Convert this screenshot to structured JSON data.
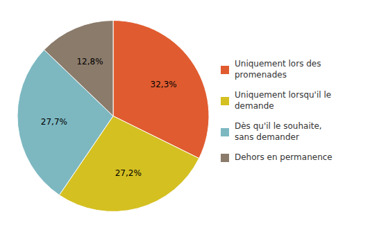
{
  "chart_data": {
    "type": "pie",
    "categories": [
      "Uniquement lors des\npromenades",
      "Uniquement lorsqu'il le\ndemande",
      "Dès qu'il le souhaite,\nsans demander",
      "Dehors en permanence"
    ],
    "values": [
      32.3,
      27.2,
      27.7,
      12.8
    ],
    "value_labels": [
      "32,3%",
      "27,2%",
      "27,7%",
      "12,8%"
    ],
    "colors": [
      "#E05C30",
      "#D4C021",
      "#7DB8C1",
      "#8B7B6B"
    ],
    "data_labels": true,
    "legend": "right"
  }
}
